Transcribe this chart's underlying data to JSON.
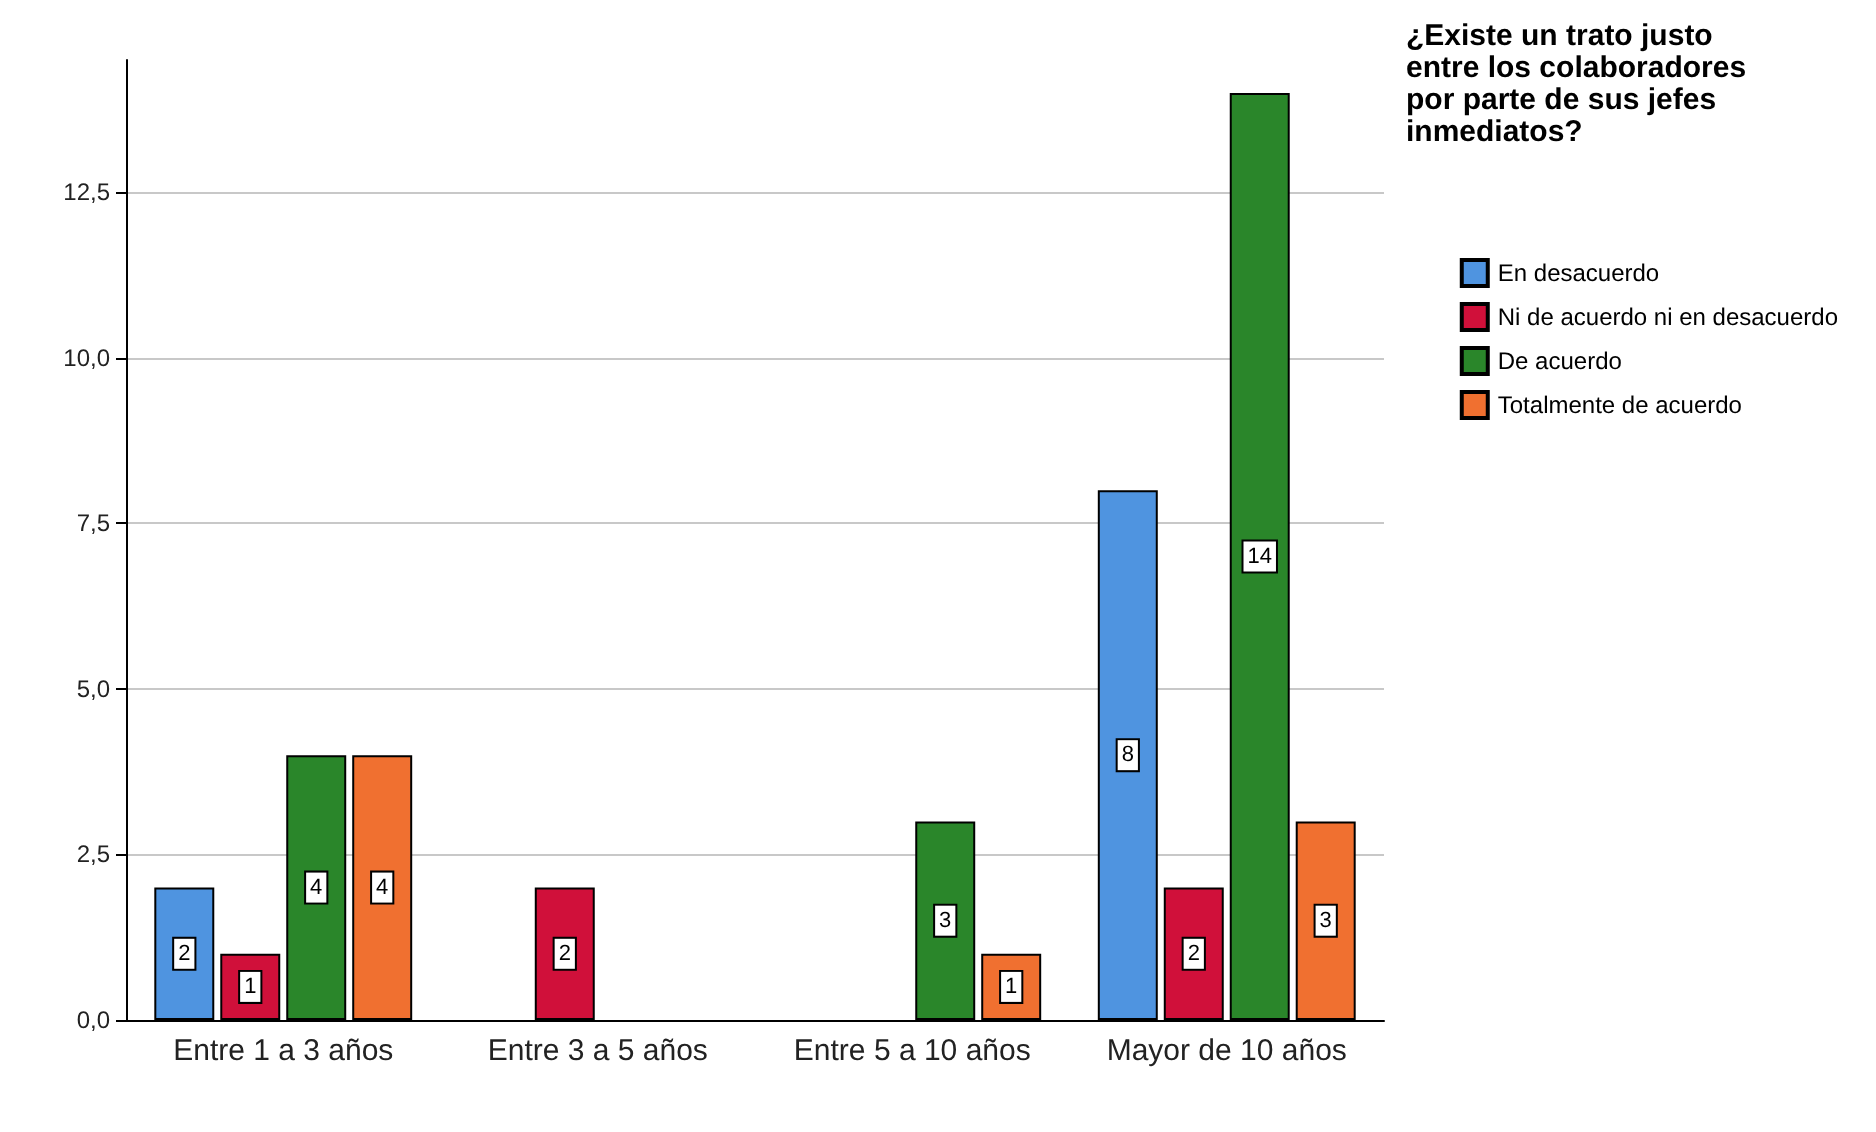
{
  "chart_data": {
    "type": "bar",
    "legend_title": "¿Existe un trato justo entre los colaboradores por parte de sus jefes inmediatos?",
    "categories": [
      "Entre 1 a 3 años",
      "Entre 3 a 5 años",
      "Entre 5 a 10 años",
      "Mayor de 10 años"
    ],
    "series": [
      {
        "name": "En desacuerdo",
        "color": "#4f94e0",
        "values": [
          2,
          null,
          null,
          8
        ]
      },
      {
        "name": "Ni de acuerdo ni en desacuerdo",
        "color": "#d0103a",
        "values": [
          1,
          2,
          null,
          2
        ]
      },
      {
        "name": "De acuerdo",
        "color": "#2a862a",
        "values": [
          4,
          null,
          3,
          14
        ]
      },
      {
        "name": "Totalmente de acuerdo",
        "color": "#f07030",
        "values": [
          4,
          null,
          1,
          3
        ]
      }
    ],
    "ylim": [
      0,
      14.5
    ],
    "yticks": [
      {
        "value": 0,
        "label": "0,0"
      },
      {
        "value": 2.5,
        "label": "2,5"
      },
      {
        "value": 5,
        "label": "5,0"
      },
      {
        "value": 7.5,
        "label": "7,5"
      },
      {
        "value": 10,
        "label": "10,0"
      },
      {
        "value": 12.5,
        "label": "12,5"
      }
    ],
    "grid": "y",
    "legend": "top right",
    "data_labels": true
  }
}
